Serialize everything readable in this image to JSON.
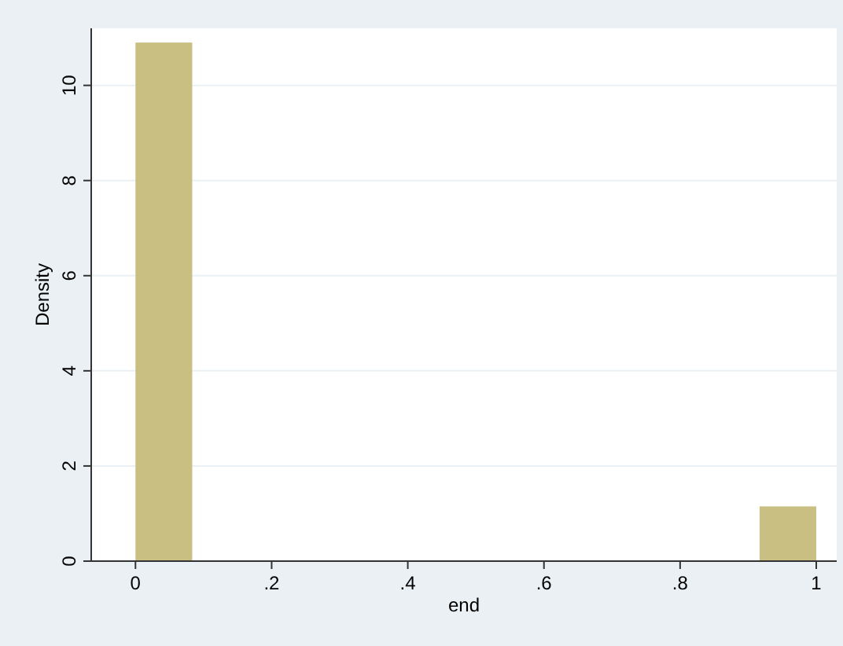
{
  "chart_data": {
    "type": "histogram",
    "xlabel": "end",
    "ylabel": "Density",
    "bins": [
      0,
      0.08333,
      0.16667,
      0.25,
      0.33333,
      0.41667,
      0.5,
      0.58333,
      0.66667,
      0.75,
      0.83333,
      0.91667,
      1
    ],
    "values": [
      10.9,
      0,
      0,
      0,
      0,
      0,
      0,
      0,
      0,
      0,
      0,
      1.15
    ],
    "color": "#c9bf82",
    "xlim": [
      -0.065,
      1.03
    ],
    "xticks": [
      0,
      {
        "value": 0.2,
        "label": ".2"
      },
      {
        "value": 0.4,
        "label": ".4"
      },
      {
        "value": 0.6,
        "label": ".6"
      },
      {
        "value": 0.8,
        "label": ".8"
      },
      1
    ],
    "ylim": [
      0,
      11.2
    ],
    "yticks": [
      0,
      2,
      4,
      6,
      8,
      10
    ],
    "grid": "y"
  }
}
